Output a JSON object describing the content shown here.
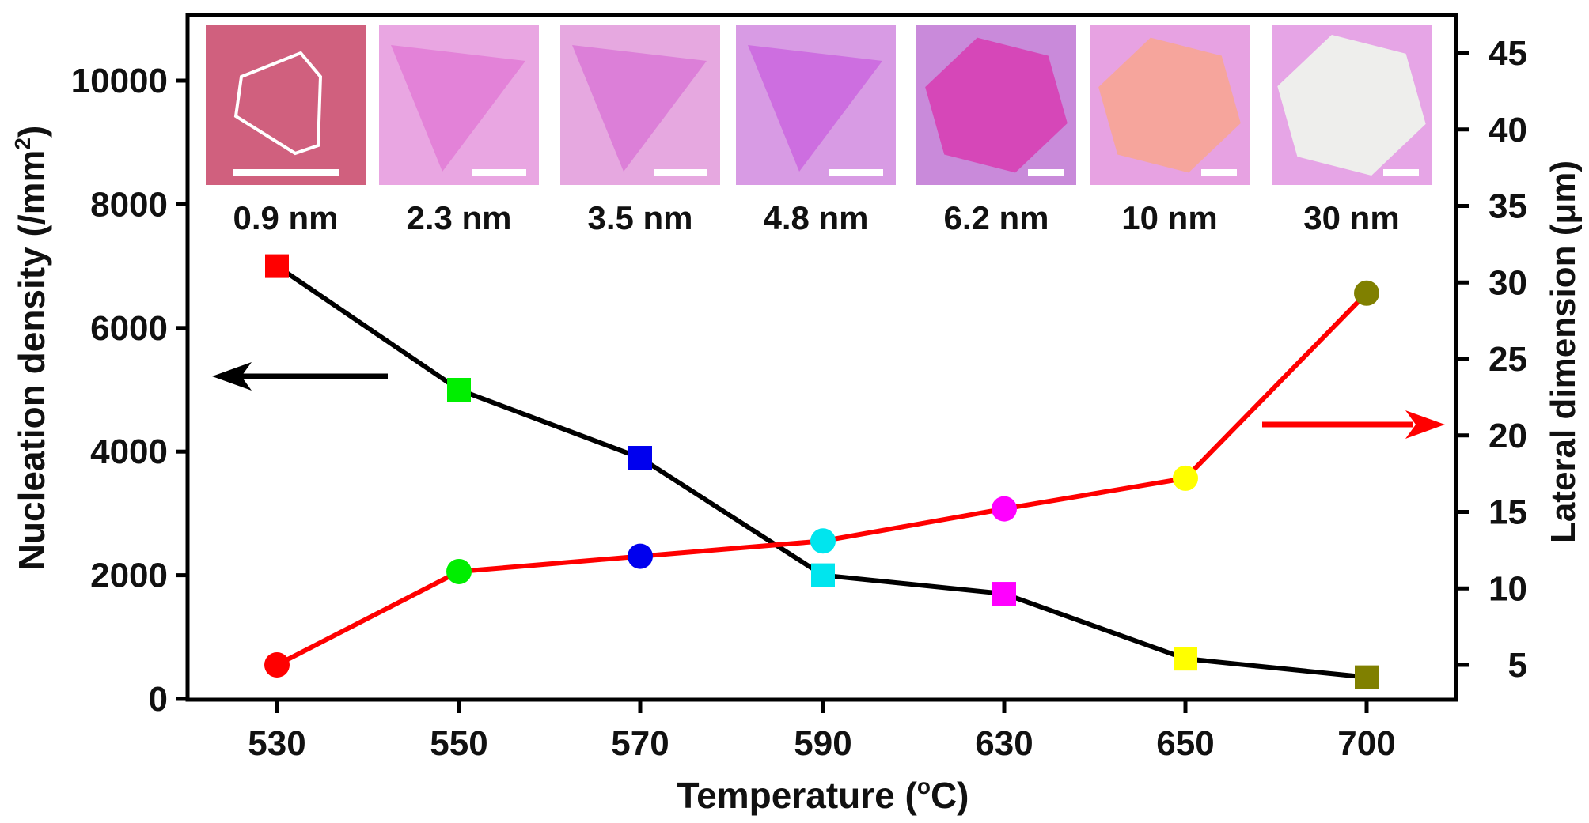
{
  "chart_data": {
    "type": "line",
    "xlabel": "Temperature (oC)",
    "xlabel_parts": {
      "main": "Temperature (",
      "sup": "o",
      "unit": "C)"
    },
    "categories": [
      "530",
      "550",
      "570",
      "590",
      "630",
      "650",
      "700"
    ],
    "left_axis": {
      "label": "Nucleation density (/mm2)",
      "label_parts": {
        "main": "Nucleation density (/mm",
        "sup": "2",
        "end": ")"
      },
      "ylim": [
        0,
        10000
      ],
      "ticks": [
        "0",
        "2000",
        "4000",
        "6000",
        "8000",
        "10000"
      ]
    },
    "right_axis": {
      "label": "Lateral dimension (μm)",
      "ylim": [
        2.5,
        47
      ],
      "ticks": [
        "5",
        "10",
        "15",
        "20",
        "25",
        "30",
        "35",
        "40",
        "45"
      ]
    },
    "series": [
      {
        "axis": "left",
        "marker": "square",
        "line_color": "#000000",
        "values": [
          7000,
          5000,
          3900,
          2000,
          1700,
          650,
          350
        ],
        "marker_colors": [
          "#ff0000",
          "#00ee00",
          "#0000ee",
          "#00e5ee",
          "#ff00ff",
          "#ffff00",
          "#808000"
        ]
      },
      {
        "axis": "right",
        "marker": "circle",
        "line_color": "#ff0000",
        "values": [
          5.0,
          11.1,
          12.1,
          13.1,
          15.2,
          17.2,
          29.3
        ],
        "marker_colors": [
          "#ff0000",
          "#00ee00",
          "#0000ee",
          "#00e5ee",
          "#ff00ff",
          "#ffff00",
          "#808000"
        ]
      }
    ],
    "insets": [
      {
        "label": "0.9 nm",
        "bg": "#d0607e",
        "shape": "outline-hex",
        "fill": "none"
      },
      {
        "label": "2.3 nm",
        "bg": "#e9a6e2",
        "shape": "triangle",
        "fill": "#e382d8"
      },
      {
        "label": "3.5 nm",
        "bg": "#e6a8e0",
        "shape": "triangle",
        "fill": "#dc7fd8"
      },
      {
        "label": "4.8 nm",
        "bg": "#d89be4",
        "shape": "triangle",
        "fill": "#cd6ee0"
      },
      {
        "label": "6.2 nm",
        "bg": "#c98ada",
        "shape": "hexagon",
        "fill": "#d647b8"
      },
      {
        "label": "10 nm",
        "bg": "#e7a2e2",
        "shape": "hexagon",
        "fill": "#f6a59c"
      },
      {
        "label": "30 nm",
        "bg": "#e6a5e6",
        "shape": "hexagon",
        "fill": "#eeeeec"
      }
    ],
    "arrows": [
      {
        "points_to": "left",
        "color": "#000000"
      },
      {
        "points_to": "right",
        "color": "#ff0000"
      }
    ],
    "grid": false
  }
}
